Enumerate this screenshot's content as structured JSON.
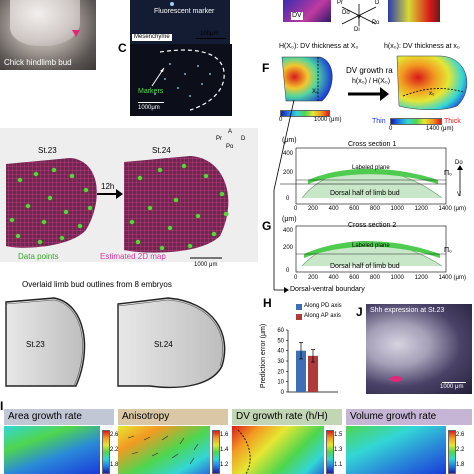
{
  "panelA": {
    "caption": "Chick hindlimb bud"
  },
  "panelB": {
    "label": "Fluorescent marker",
    "sublabel": "Mesenchyme",
    "scale": "100μm"
  },
  "panelC": {
    "letter": "C",
    "label": "Markers",
    "scale": "1000μm"
  },
  "panelTop": {
    "dv_label": "DV",
    "axis_labels": {
      "pr": "Pr",
      "d": "D",
      "do": "Do",
      "v": "V",
      "di": "Di",
      "po": "Po"
    }
  },
  "panelD": {
    "letter": "D",
    "stage1": "St.23",
    "stage2": "St.24",
    "arrow_label": "12h",
    "axes": {
      "a": "A",
      "pr": "Pr",
      "d": "D",
      "po": "Po"
    },
    "legend_points": "Data points",
    "legend_map": "Estimated 2D map",
    "scale": "1000 μm"
  },
  "overlay": {
    "title": "Overlaid limb bud outlines from 8 embryos",
    "stage1": "St.23",
    "stage2": "St.24"
  },
  "panelF": {
    "letter": "F",
    "left_formula": "H(X₀): DV thickness at X₀",
    "right_formula": "h(x₀): DV thickness at x₀",
    "arrow_title": "DV growth rate",
    "arrow_formula": "h(x₀) / H(X₀)",
    "thin": "Thin",
    "thick": "Thick",
    "cbar1_min": "0",
    "cbar1_max": "1000 (μm)",
    "cbar2_min": "0",
    "cbar2_max": "1400 (μm)",
    "x0_label": "X₀",
    "x0b_label": "x₀"
  },
  "cross1": {
    "title": "Cross section 1",
    "labeled": "Labeled plane",
    "dorsal": "Dorsal half of limb bud",
    "pi": "Π₀",
    "ylabel": "(μm)",
    "y_ticks": [
      "400",
      "200",
      "0"
    ],
    "x_ticks": [
      "0",
      "200",
      "400",
      "600",
      "800",
      "1000",
      "1200",
      "1400 (μm)"
    ],
    "do": "Do",
    "v": "V"
  },
  "panelG": {
    "letter": "G"
  },
  "cross2": {
    "title": "Cross section 2",
    "labeled": "Labeled plane",
    "dorsal": "Dorsal half of limb bud",
    "pi": "Π₀",
    "ylabel": "(μm)",
    "y_ticks": [
      "400",
      "200",
      "0"
    ],
    "x_ticks": [
      "0",
      "200",
      "400",
      "600",
      "800",
      "1000",
      "1200",
      "1400 (μm)"
    ],
    "boundary": "Dorsal-ventral boundary"
  },
  "panelH": {
    "letter": "H",
    "ylabel": "Prediction error (μm)",
    "y_ticks": [
      "0",
      "10",
      "20",
      "30",
      "40",
      "50",
      "60"
    ],
    "legend": [
      {
        "label": "Along PD axis",
        "color": "#3d6fb5"
      },
      {
        "label": "Along AP axis",
        "color": "#b03a3a"
      }
    ]
  },
  "panelJ": {
    "letter": "J",
    "title": "Shh expression at St.23",
    "scale": "1000 μm"
  },
  "panelI": {
    "letter": "I",
    "maps": [
      {
        "title": "Area growth rate",
        "ticks": [
          "2.6",
          "2.2",
          "1.8"
        ]
      },
      {
        "title": "Anisotropy",
        "ticks": [
          "1.6",
          "1.4",
          "1.2"
        ]
      },
      {
        "title": "DV growth rate (h/H)",
        "ticks": [
          "1.5",
          "1.3",
          "1.1"
        ]
      },
      {
        "title": "Volume growth rate",
        "ticks": [
          "2.6",
          "2.2",
          "1.8"
        ]
      }
    ]
  },
  "chart_data": {
    "type": "bar",
    "categories": [
      "Along PD axis",
      "Along AP axis"
    ],
    "values": [
      40,
      35
    ],
    "errors": [
      8,
      6
    ],
    "ylabel": "Prediction error (μm)",
    "ylim": [
      0,
      60
    ],
    "colors": [
      "#3d6fb5",
      "#b03a3a"
    ]
  }
}
